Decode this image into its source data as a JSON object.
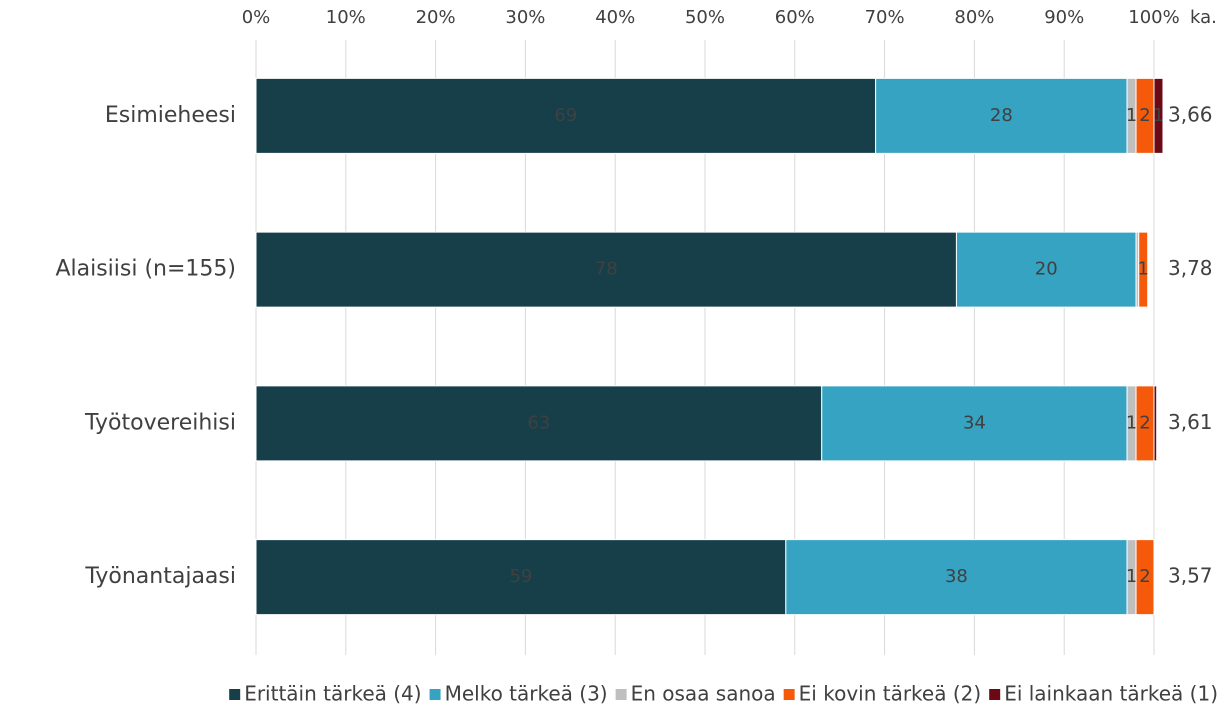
{
  "chart_data": {
    "type": "stacked-bar-horizontal",
    "categories": [
      "Esimieheesi",
      "Alaisiisi (n=155)",
      "Työtovereihisi",
      "Työnantajaasi"
    ],
    "series": [
      {
        "name": "Erittäin tärkeä (4)",
        "color": "#163f4a",
        "values": [
          69,
          78,
          63,
          59
        ]
      },
      {
        "name": "Melko tärkeä (3)",
        "color": "#35a3c1",
        "values": [
          28,
          20,
          34,
          38
        ]
      },
      {
        "name": "En osaa sanoa",
        "color": "#bfbfbf",
        "values": [
          1,
          0.3,
          1,
          1
        ]
      },
      {
        "name": "Ei kovin tärkeä (2)",
        "color": "#f55a0b",
        "values": [
          2,
          1,
          2,
          2
        ]
      },
      {
        "name": "Ei lainkaan tärkeä (1)",
        "color": "#6b0a15",
        "values": [
          1,
          null,
          0.3,
          null
        ]
      }
    ],
    "averages_label": "ka.",
    "averages": [
      3.66,
      3.78,
      3.61,
      3.57
    ],
    "averages_labels": [
      "3,66",
      "3,78",
      "3,61",
      "3,57"
    ],
    "xlim": [
      0,
      100
    ],
    "xticks": [
      {
        "value": 0,
        "label": "0%"
      },
      {
        "value": 10,
        "label": "10%"
      },
      {
        "value": 20,
        "label": "20%"
      },
      {
        "value": 30,
        "label": "30%"
      },
      {
        "value": 40,
        "label": "40%"
      },
      {
        "value": 50,
        "label": "50%"
      },
      {
        "value": 60,
        "label": "60%"
      },
      {
        "value": 70,
        "label": "70%"
      },
      {
        "value": 80,
        "label": "80%"
      },
      {
        "value": 90,
        "label": "90%"
      },
      {
        "value": 100,
        "label": "100%"
      }
    ],
    "grid": true,
    "legend": "bottom"
  }
}
